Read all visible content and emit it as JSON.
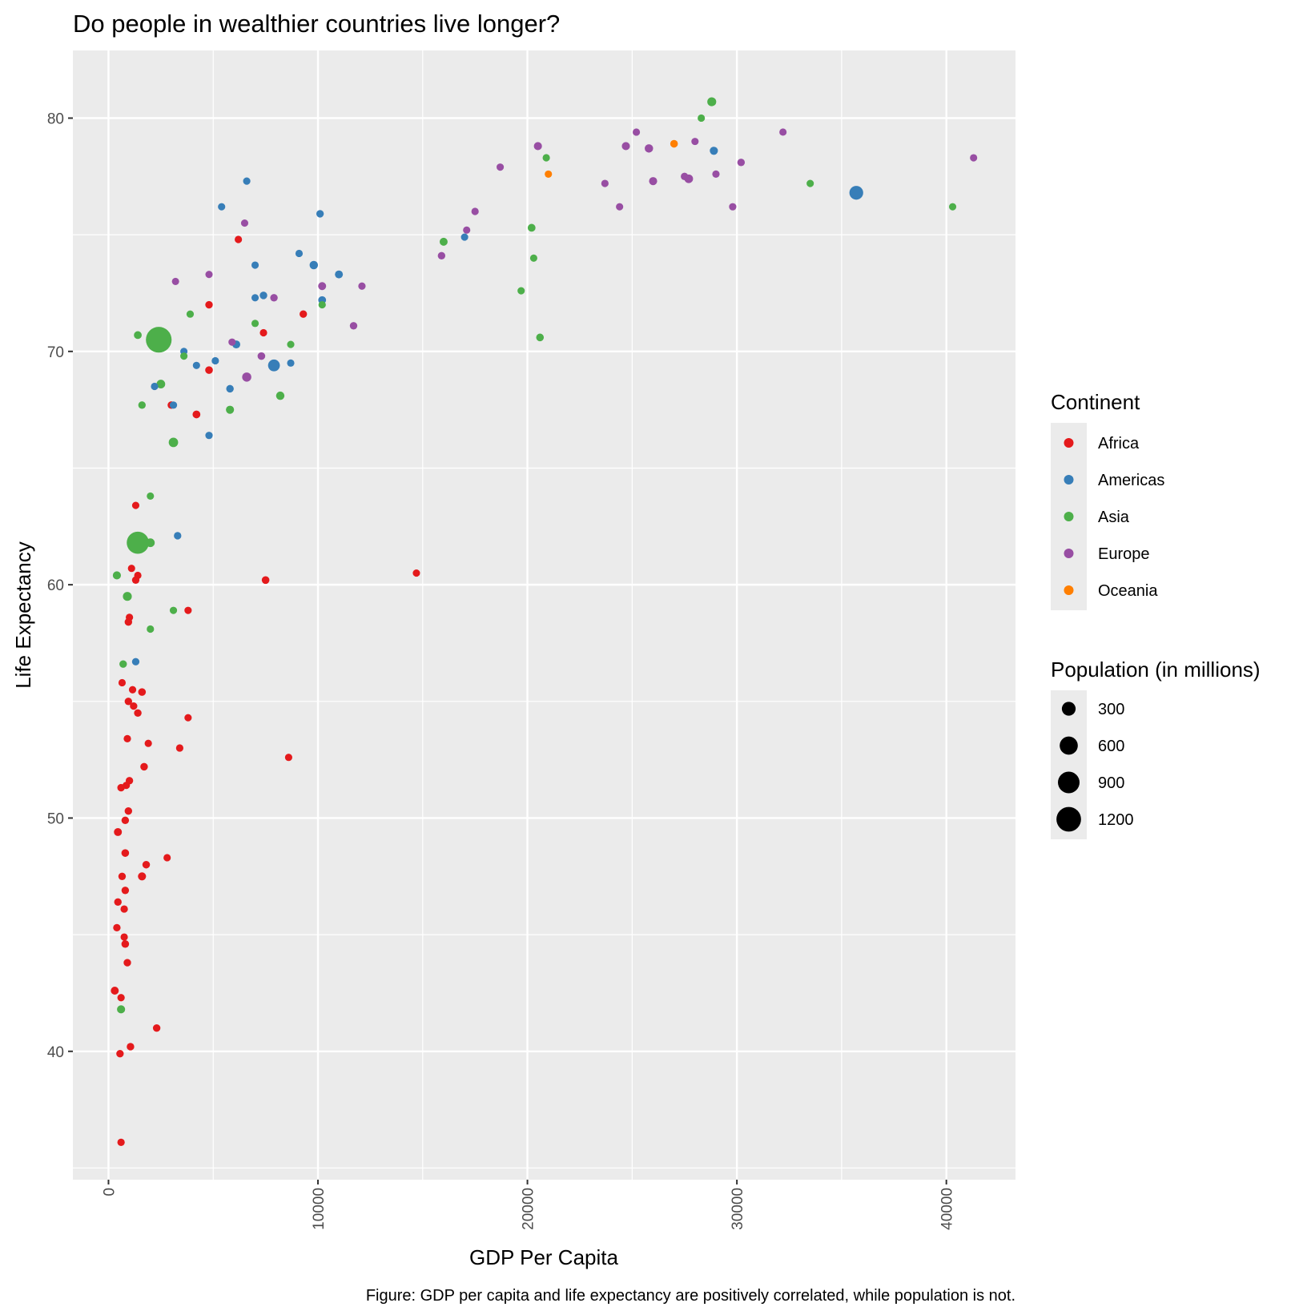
{
  "chart_data": {
    "type": "scatter",
    "title": "Do people in wealthier countries live longer?",
    "xlabel": "GDP Per Capita",
    "ylabel": "Life Expectancy",
    "caption": "Figure: GDP per capita and life expectancy are positively correlated, while population is not.",
    "xlim": [
      -1700,
      43300
    ],
    "ylim": [
      34.5,
      82.9
    ],
    "x_ticks": [
      0,
      10000,
      20000,
      30000,
      40000
    ],
    "y_ticks": [
      40,
      50,
      60,
      70,
      80
    ],
    "x_tick_rotation": -90,
    "grid": true,
    "legend_position": "right",
    "color_legend": {
      "title": "Continent",
      "entries": [
        {
          "name": "Africa",
          "color": "#E41A1C"
        },
        {
          "name": "Americas",
          "color": "#377EB8"
        },
        {
          "name": "Asia",
          "color": "#4DAF4A"
        },
        {
          "name": "Europe",
          "color": "#984EA3"
        },
        {
          "name": "Oceania",
          "color": "#FF7F00"
        }
      ]
    },
    "size_legend": {
      "title": "Population (in millions)",
      "values": [
        300,
        600,
        900,
        1200
      ]
    },
    "series": [
      {
        "name": "Africa",
        "color": "#E41A1C",
        "points": [
          [
            6200,
            74.8,
            5
          ],
          [
            4800,
            72.0,
            8
          ],
          [
            9300,
            71.6,
            8
          ],
          [
            7400,
            70.8,
            5
          ],
          [
            4800,
            69.2,
            15
          ],
          [
            3000,
            67.7,
            10
          ],
          [
            4200,
            67.3,
            20
          ],
          [
            1300,
            63.4,
            3
          ],
          [
            14700,
            60.5,
            3
          ],
          [
            7500,
            60.2,
            15
          ],
          [
            1100,
            60.7,
            3
          ],
          [
            1400,
            60.4,
            4
          ],
          [
            1300,
            60.2,
            8
          ],
          [
            3800,
            58.9,
            4
          ],
          [
            1000,
            58.6,
            6
          ],
          [
            950,
            58.4,
            10
          ],
          [
            1600,
            55.4,
            15
          ],
          [
            1150,
            55.5,
            5
          ],
          [
            650,
            55.8,
            3
          ],
          [
            950,
            55.0,
            10
          ],
          [
            1200,
            54.8,
            8
          ],
          [
            1400,
            54.5,
            10
          ],
          [
            3800,
            54.3,
            4
          ],
          [
            900,
            53.4,
            6
          ],
          [
            1900,
            53.2,
            4
          ],
          [
            3400,
            53.0,
            6
          ],
          [
            8600,
            52.6,
            4
          ],
          [
            1700,
            52.2,
            12
          ],
          [
            1000,
            51.6,
            8
          ],
          [
            850,
            51.4,
            5
          ],
          [
            600,
            51.3,
            8
          ],
          [
            950,
            50.3,
            10
          ],
          [
            800,
            49.9,
            10
          ],
          [
            450,
            49.4,
            25
          ],
          [
            800,
            48.5,
            15
          ],
          [
            2800,
            48.3,
            3
          ],
          [
            1800,
            48.0,
            12
          ],
          [
            650,
            47.5,
            10
          ],
          [
            1600,
            47.5,
            30
          ],
          [
            800,
            46.9,
            10
          ],
          [
            450,
            46.4,
            10
          ],
          [
            750,
            46.1,
            6
          ],
          [
            400,
            45.3,
            8
          ],
          [
            750,
            44.9,
            4
          ],
          [
            800,
            44.6,
            15
          ],
          [
            900,
            43.8,
            8
          ],
          [
            300,
            42.6,
            25
          ],
          [
            600,
            42.3,
            6
          ],
          [
            2300,
            41.0,
            10
          ],
          [
            1050,
            40.2,
            10
          ],
          [
            550,
            39.9,
            8
          ],
          [
            600,
            36.1,
            6
          ]
        ]
      },
      {
        "name": "Americas",
        "color": "#377EB8",
        "points": [
          [
            35700,
            76.8,
            300
          ],
          [
            28900,
            78.6,
            30
          ],
          [
            17000,
            74.9,
            3
          ],
          [
            6600,
            77.3,
            4
          ],
          [
            5400,
            76.2,
            4
          ],
          [
            10100,
            75.9,
            10
          ],
          [
            9100,
            74.2,
            4
          ],
          [
            7000,
            73.7,
            3
          ],
          [
            9800,
            73.7,
            40
          ],
          [
            11000,
            73.3,
            25
          ],
          [
            7000,
            72.3,
            3
          ],
          [
            7400,
            72.4,
            12
          ],
          [
            10200,
            72.2,
            20
          ],
          [
            6100,
            70.3,
            25
          ],
          [
            5100,
            69.6,
            5
          ],
          [
            3600,
            70.0,
            3
          ],
          [
            4200,
            69.4,
            3
          ],
          [
            8700,
            69.5,
            3
          ],
          [
            7900,
            69.4,
            190
          ],
          [
            2200,
            68.5,
            5
          ],
          [
            5800,
            68.4,
            12
          ],
          [
            3100,
            67.7,
            6
          ],
          [
            4800,
            66.4,
            6
          ],
          [
            3300,
            62.1,
            8
          ],
          [
            1300,
            56.7,
            8
          ]
        ]
      },
      {
        "name": "Asia",
        "color": "#4DAF4A",
        "points": [
          [
            28800,
            80.7,
            60
          ],
          [
            28300,
            80.0,
            3
          ],
          [
            20900,
            78.3,
            4
          ],
          [
            33500,
            77.2,
            3
          ],
          [
            40300,
            76.2,
            3
          ],
          [
            20200,
            75.3,
            20
          ],
          [
            16000,
            74.7,
            25
          ],
          [
            20300,
            74.0,
            2
          ],
          [
            19700,
            72.6,
            3
          ],
          [
            10200,
            72.0,
            5
          ],
          [
            3900,
            71.6,
            5
          ],
          [
            7000,
            71.2,
            3
          ],
          [
            2400,
            70.5,
            1320
          ],
          [
            1400,
            70.7,
            20
          ],
          [
            8700,
            70.3,
            3
          ],
          [
            20600,
            70.6,
            15
          ],
          [
            3600,
            69.8,
            3
          ],
          [
            2500,
            68.6,
            50
          ],
          [
            8200,
            68.1,
            40
          ],
          [
            1600,
            67.7,
            8
          ],
          [
            5800,
            67.5,
            30
          ],
          [
            3100,
            66.1,
            80
          ],
          [
            2000,
            63.8,
            3
          ],
          [
            1400,
            61.8,
            950
          ],
          [
            2000,
            61.8,
            50
          ],
          [
            400,
            60.4,
            30
          ],
          [
            900,
            59.5,
            60
          ],
          [
            3100,
            58.9,
            4
          ],
          [
            2000,
            58.1,
            5
          ],
          [
            700,
            56.6,
            10
          ],
          [
            600,
            41.8,
            30
          ]
        ]
      },
      {
        "name": "Europe",
        "color": "#984EA3",
        "points": [
          [
            25200,
            79.4,
            4
          ],
          [
            32200,
            79.4,
            3
          ],
          [
            20500,
            78.8,
            30
          ],
          [
            24700,
            78.8,
            30
          ],
          [
            25800,
            78.7,
            40
          ],
          [
            28000,
            79.0,
            2
          ],
          [
            41300,
            78.3,
            3
          ],
          [
            18700,
            77.9,
            3
          ],
          [
            30200,
            78.1,
            10
          ],
          [
            27500,
            77.5,
            8
          ],
          [
            27700,
            77.4,
            50
          ],
          [
            29000,
            77.6,
            5
          ],
          [
            23700,
            77.2,
            5
          ],
          [
            26000,
            77.3,
            30
          ],
          [
            24400,
            76.2,
            3
          ],
          [
            29800,
            76.2,
            5
          ],
          [
            17500,
            76.0,
            5
          ],
          [
            17100,
            75.2,
            3
          ],
          [
            15900,
            74.1,
            10
          ],
          [
            6500,
            75.5,
            2
          ],
          [
            4800,
            73.3,
            3
          ],
          [
            3200,
            73.0,
            2
          ],
          [
            12100,
            72.8,
            5
          ],
          [
            10200,
            72.8,
            25
          ],
          [
            7900,
            72.3,
            10
          ],
          [
            11700,
            71.1,
            10
          ],
          [
            5900,
            70.4,
            3
          ],
          [
            7300,
            69.8,
            15
          ],
          [
            6600,
            68.9,
            70
          ]
        ]
      },
      {
        "name": "Oceania",
        "color": "#FF7F00",
        "points": [
          [
            27000,
            78.9,
            15
          ],
          [
            21000,
            77.6,
            4
          ]
        ]
      }
    ]
  }
}
